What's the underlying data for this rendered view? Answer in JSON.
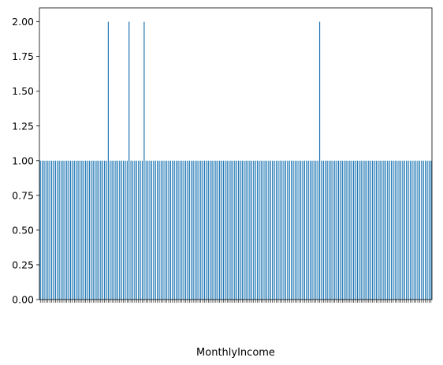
{
  "chart_data": {
    "type": "bar",
    "title": "",
    "xlabel": "MonthlyIncome",
    "ylabel": "",
    "ylim": [
      0,
      2.1
    ],
    "yticks": [
      "0.00",
      "0.25",
      "0.50",
      "0.75",
      "1.00",
      "1.25",
      "1.50",
      "1.75",
      "2.00"
    ],
    "grid": false,
    "legend": "none",
    "bar_color": "#1f77b4",
    "category_count": 208,
    "values": [
      1,
      1,
      1,
      1,
      1,
      1,
      1,
      1,
      1,
      1,
      1,
      1,
      1,
      1,
      1,
      1,
      1,
      1,
      1,
      1,
      1,
      1,
      1,
      1,
      1,
      1,
      1,
      1,
      1,
      1,
      1,
      1,
      1,
      1,
      1,
      1,
      2,
      1,
      1,
      1,
      1,
      1,
      1,
      1,
      1,
      1,
      1,
      2,
      1,
      1,
      1,
      1,
      1,
      1,
      1,
      2,
      1,
      1,
      1,
      1,
      1,
      1,
      1,
      1,
      1,
      1,
      1,
      1,
      1,
      1,
      1,
      1,
      1,
      1,
      1,
      1,
      1,
      1,
      1,
      1,
      1,
      1,
      1,
      1,
      1,
      1,
      1,
      1,
      1,
      1,
      1,
      1,
      1,
      1,
      1,
      1,
      1,
      1,
      1,
      1,
      1,
      1,
      1,
      1,
      1,
      1,
      1,
      1,
      1,
      1,
      1,
      1,
      1,
      1,
      1,
      1,
      1,
      1,
      1,
      1,
      1,
      1,
      1,
      1,
      1,
      1,
      1,
      1,
      1,
      1,
      1,
      1,
      1,
      1,
      1,
      1,
      1,
      1,
      1,
      1,
      1,
      1,
      1,
      1,
      1,
      1,
      1,
      1,
      2,
      1,
      1,
      1,
      1,
      1,
      1,
      1,
      1,
      1,
      1,
      1,
      1,
      1,
      1,
      1,
      1,
      1,
      1,
      1,
      1,
      1,
      1,
      1,
      1,
      1,
      1,
      1,
      1,
      1,
      1,
      1,
      1,
      1,
      1,
      1,
      1,
      1,
      1,
      1,
      1,
      1,
      1,
      1,
      1,
      1,
      1,
      1,
      1,
      1,
      1,
      1,
      1,
      1,
      1,
      1,
      1,
      1,
      1,
      1
    ]
  }
}
